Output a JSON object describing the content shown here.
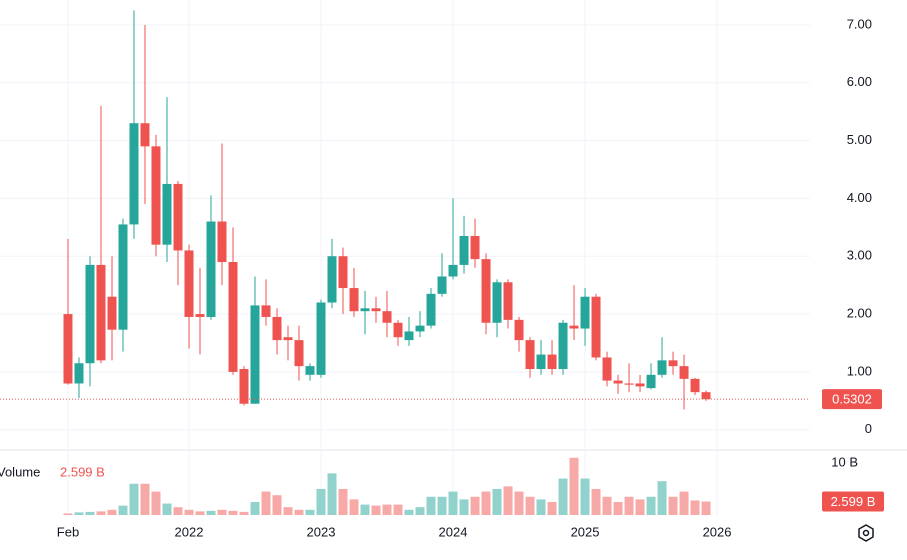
{
  "chart_data": {
    "type": "candlestick",
    "x": [
      0,
      1,
      2,
      3,
      4,
      5,
      6,
      7,
      8,
      9,
      10,
      11,
      12,
      13,
      14,
      15,
      16,
      17,
      18,
      19,
      20,
      21,
      22,
      23,
      24,
      25,
      26,
      27,
      28,
      29,
      30,
      31,
      32,
      33,
      34,
      35,
      36,
      37,
      38,
      39,
      40,
      41,
      42,
      43,
      44,
      45,
      46,
      47,
      48,
      49,
      50,
      51,
      52,
      53,
      54,
      55,
      56,
      57,
      58
    ],
    "open": [
      2.0,
      0.8,
      1.15,
      2.85,
      2.3,
      1.73,
      3.55,
      5.3,
      4.9,
      3.2,
      4.25,
      3.1,
      2.0,
      1.95,
      3.6,
      2.9,
      1.05,
      0.45,
      2.15,
      1.95,
      1.6,
      1.55,
      0.95,
      0.95,
      2.2,
      3.0,
      2.45,
      2.05,
      2.1,
      2.05,
      1.85,
      1.55,
      1.7,
      1.8,
      2.35,
      2.65,
      2.85,
      3.35,
      2.95,
      1.85,
      2.55,
      1.9,
      1.55,
      1.05,
      1.3,
      1.05,
      1.8,
      1.75,
      2.3,
      1.25,
      0.85,
      0.8,
      0.8,
      0.72,
      0.95,
      1.2,
      1.1,
      0.88,
      0.65
    ],
    "high": [
      3.3,
      1.25,
      3.0,
      5.6,
      3.0,
      3.65,
      7.25,
      7.0,
      5.1,
      5.75,
      4.3,
      3.2,
      2.8,
      4.05,
      4.95,
      3.5,
      1.1,
      2.65,
      2.6,
      2.1,
      1.8,
      1.8,
      1.15,
      2.25,
      3.3,
      3.15,
      2.8,
      2.4,
      2.3,
      2.4,
      1.9,
      1.95,
      2.05,
      2.45,
      3.05,
      4.0,
      3.7,
      3.65,
      3.05,
      2.6,
      2.6,
      1.95,
      1.6,
      1.55,
      1.55,
      1.9,
      2.5,
      2.45,
      2.35,
      1.35,
      0.95,
      1.15,
      0.95,
      1.15,
      1.6,
      1.35,
      1.3,
      0.9,
      0.68
    ],
    "low": [
      0.78,
      0.55,
      0.75,
      1.15,
      1.2,
      1.35,
      3.3,
      3.9,
      3.0,
      2.9,
      2.5,
      1.4,
      1.3,
      1.9,
      2.5,
      0.95,
      0.42,
      0.45,
      1.8,
      1.3,
      1.2,
      0.85,
      0.85,
      0.9,
      2.1,
      2.0,
      1.95,
      1.65,
      1.85,
      1.6,
      1.45,
      1.45,
      1.6,
      1.75,
      2.3,
      2.6,
      2.7,
      2.8,
      1.65,
      1.6,
      1.75,
      1.35,
      0.9,
      0.95,
      0.95,
      0.95,
      1.55,
      1.45,
      1.2,
      0.75,
      0.62,
      0.65,
      0.65,
      0.7,
      0.9,
      0.95,
      0.35,
      0.6,
      0.5
    ],
    "close": [
      0.8,
      1.15,
      2.85,
      1.2,
      1.73,
      3.55,
      5.3,
      4.9,
      3.2,
      4.25,
      3.1,
      1.95,
      1.95,
      3.6,
      2.9,
      1.0,
      0.45,
      2.15,
      1.95,
      1.55,
      1.55,
      1.1,
      1.1,
      2.2,
      3.0,
      2.45,
      2.05,
      2.1,
      2.05,
      1.85,
      1.6,
      1.7,
      1.8,
      2.35,
      2.65,
      2.85,
      3.35,
      2.95,
      1.85,
      2.55,
      1.9,
      1.55,
      1.05,
      1.3,
      1.05,
      1.85,
      1.75,
      2.3,
      1.25,
      0.85,
      0.8,
      0.78,
      0.75,
      0.95,
      1.2,
      1.1,
      0.88,
      0.65,
      0.53
    ],
    "up_color": "#26a69a",
    "down_color": "#ef5350",
    "xlim": [
      -6.18,
      67.45
    ],
    "xticks": [
      {
        "value": 0,
        "label": "Feb"
      },
      {
        "value": 11,
        "label": "2022"
      },
      {
        "value": 23,
        "label": "2023"
      },
      {
        "value": 35,
        "label": "2024"
      },
      {
        "value": 47,
        "label": "2025"
      },
      {
        "value": 59,
        "label": "2026"
      }
    ],
    "ylim": [
      -0.35,
      7.43
    ],
    "yticks": [
      0,
      {
        "value": 1,
        "label": "1.00"
      },
      {
        "value": 2,
        "label": "2.00"
      },
      {
        "value": 3,
        "label": "3.00"
      },
      {
        "value": 4,
        "label": "4.00"
      },
      {
        "value": 5,
        "label": "5.00"
      },
      {
        "value": 6,
        "label": "6.00"
      },
      {
        "value": 7,
        "label": "7.00"
      }
    ],
    "last_price": 0.5302,
    "grid": true,
    "volume": {
      "name": "Volume",
      "up_color": "#92d2cc",
      "down_color": "#f7a9a7",
      "values": [
        0.3,
        0.5,
        0.6,
        0.7,
        1.0,
        1.8,
        6.0,
        6.0,
        4.5,
        2.2,
        1.5,
        1.0,
        0.7,
        0.8,
        1.0,
        0.8,
        0.6,
        2.5,
        4.5,
        3.8,
        1.5,
        1.0,
        1.0,
        5.0,
        8.0,
        5.0,
        3.0,
        2.0,
        1.8,
        2.0,
        2.0,
        1.0,
        1.5,
        3.5,
        3.5,
        4.5,
        3.0,
        3.5,
        4.5,
        5.0,
        5.5,
        4.5,
        3.5,
        3.0,
        2.5,
        7.0,
        11.0,
        7.0,
        5.0,
        3.5,
        2.5,
        3.5,
        3.0,
        3.5,
        6.5,
        3.5,
        4.5,
        2.8,
        2.599
      ],
      "last_value": 2.599,
      "last_value_label": "2.599 B",
      "ylim": [
        0,
        12.1
      ],
      "yticks": [
        {
          "value": 10,
          "label": "10 B"
        }
      ]
    }
  }
}
